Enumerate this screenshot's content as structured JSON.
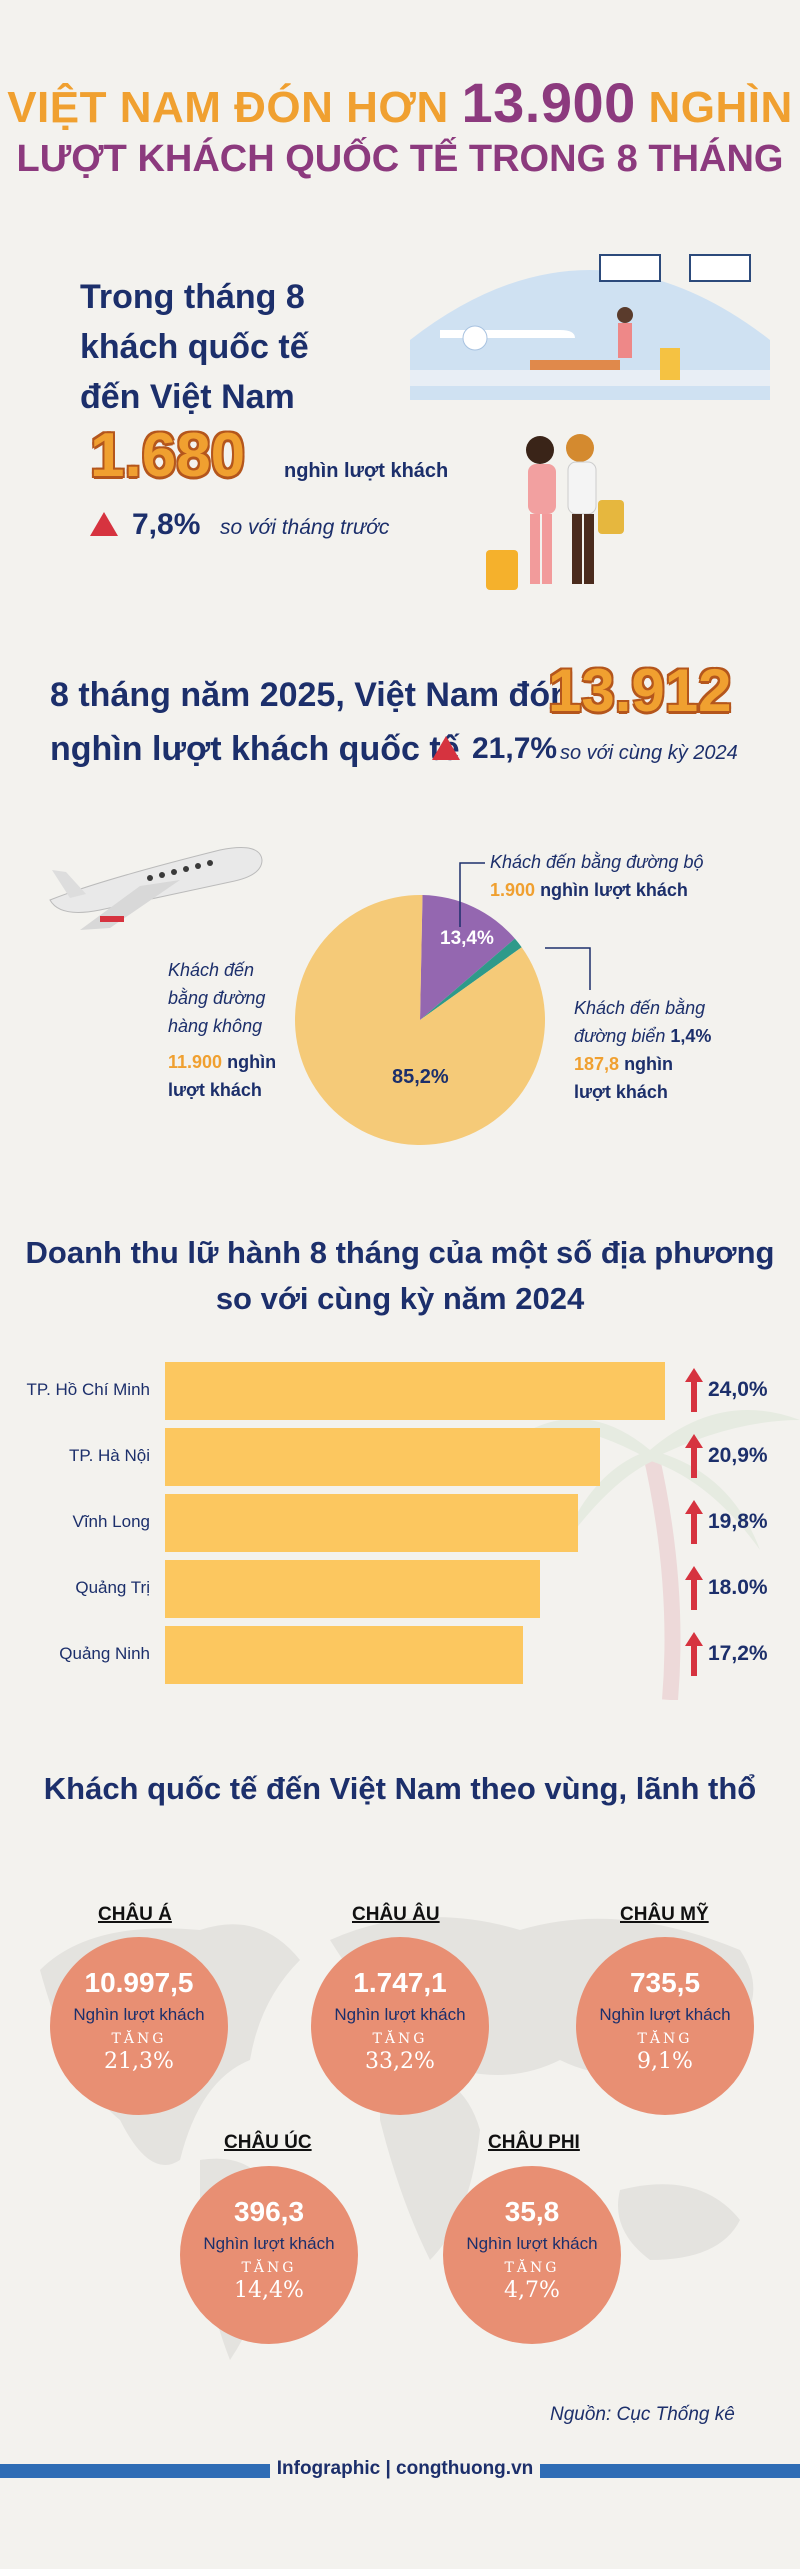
{
  "title": {
    "line1_prefix": "VIỆT NAM ĐÓN HƠN",
    "line1_number": "13.900",
    "line1_suffix": "NGHÌN",
    "line2": "LƯỢT KHÁCH QUỐC TẾ TRONG 8 THÁNG"
  },
  "month": {
    "heading_1": "Trong tháng 8",
    "heading_2": "khách quốc tế",
    "heading_3": "đến Việt Nam",
    "number": "1.680",
    "unit": "nghìn lượt khách",
    "pct": "7,8%",
    "compare": "so với tháng trước"
  },
  "year": {
    "line1": "8 tháng năm 2025, Việt Nam đón",
    "number": "13.912",
    "line2": "nghìn lượt khách quốc tế",
    "pct": "21,7%",
    "compare": "so với cùng kỳ 2024"
  },
  "pie": {
    "road_label": "Khách đến bằng đường bộ",
    "road_value": "1.900",
    "road_unit": "nghìn lượt khách",
    "road_pct": "13,4%",
    "air_label_1": "Khách đến",
    "air_label_2": "bằng đường",
    "air_label_3": "hàng không",
    "air_value": "11.900",
    "air_unit_1": "nghìn",
    "air_unit_2": "lượt khách",
    "air_pct": "85,2%",
    "sea_label_1": "Khách đến bằng",
    "sea_label_2": "đường biển",
    "sea_pct": "1,4%",
    "sea_value": "187,8",
    "sea_unit_1": "nghìn",
    "sea_unit_2": "lượt khách",
    "colors": {
      "air": "#f5ca78",
      "road": "#9467b0",
      "sea": "#2e9a8a"
    }
  },
  "chart_data": {
    "type": "bar",
    "title": "Doanh thu lữ hành 8 tháng của một số địa phương so với cùng kỳ năm 2024",
    "categories": [
      "TP. Hồ Chí Minh",
      "TP. Hà Nội",
      "Vĩnh Long",
      "Quảng Trị",
      "Quảng Ninh"
    ],
    "values": [
      24.0,
      20.9,
      19.8,
      18.0,
      17.2
    ],
    "value_labels": [
      "24,0%",
      "20,9%",
      "19,8%",
      "18.0%",
      "17,2%"
    ],
    "orientation": "horizontal",
    "bar_color": "#fcc75f"
  },
  "revenue": {
    "title_1": "Doanh thu lữ hành 8 tháng của một số địa phương",
    "title_2": "so với cùng kỳ năm 2024"
  },
  "regions": {
    "title": "Khách quốc tế đến Việt Nam theo vùng, lãnh thổ",
    "unit": "Nghìn lượt khách",
    "tang": "TĂNG",
    "items": [
      {
        "name": "CHÂU Á",
        "value": "10.997,5",
        "growth": "21,3%"
      },
      {
        "name": "CHÂU ÂU",
        "value": "1.747,1",
        "growth": "33,2%"
      },
      {
        "name": "CHÂU MỸ",
        "value": "735,5",
        "growth": "9,1%"
      },
      {
        "name": "CHÂU ÚC",
        "value": "396,3",
        "growth": "14,4%"
      },
      {
        "name": "CHÂU PHI",
        "value": "35,8",
        "growth": "4,7%"
      }
    ]
  },
  "source": "Nguồn: Cục Thống kê",
  "footer": "Infographic | congthuong.vn"
}
